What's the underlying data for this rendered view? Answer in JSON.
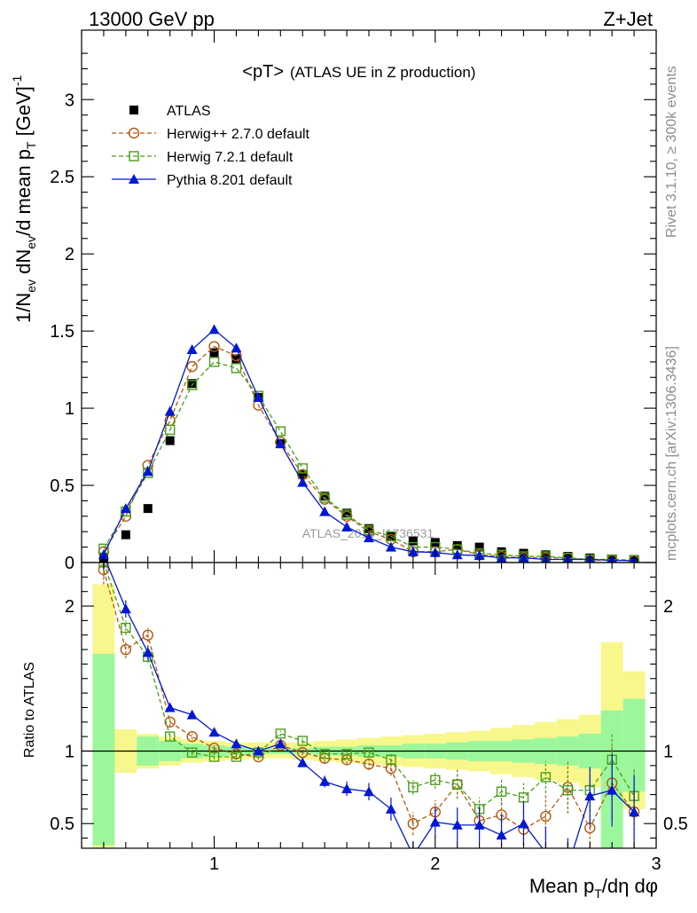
{
  "header": {
    "left": "13000 GeV pp",
    "right": "Z+Jet"
  },
  "side_labels": {
    "rivet": "Rivet 3.1.10, ≥ 300k events",
    "mcplots": "mcplots.cern.ch [arXiv:1306.3436]"
  },
  "colors": {
    "atlas": "#000000",
    "herwigpp": "#b3590f",
    "herwig7": "#4a9e1a",
    "pythia": "#0018d6",
    "band_inner": "#9cf79c",
    "band_outer": "#f7f78c"
  },
  "chart_data": [
    {
      "type": "scatter",
      "panel": "main",
      "title": "<pT>",
      "subtitle": "(ATLAS UE in Z production)",
      "ylabel": "1/N_ev dN_ev/d mean p_T [GeV]^-1",
      "ylabel_parts": {
        "main": "1/N",
        "sub1": "ev",
        "mid": " dN",
        "sub2": "ev",
        "mid2": "/d mean p",
        "sub3": "T",
        "unit": " [GeV]",
        "sup": "-1"
      },
      "watermark": "ATLAS_2019_I1736531",
      "xlim": [
        0.4,
        3.0
      ],
      "ylim": [
        0,
        3.45
      ],
      "yticks": [
        0,
        0.5,
        1,
        1.5,
        2,
        2.5,
        3
      ],
      "ytick_labels": [
        "0",
        "0.5",
        "1",
        "1.5",
        "2",
        "2.5",
        "3"
      ],
      "legend_position": "top-left",
      "x": [
        0.5,
        0.6,
        0.7,
        0.8,
        0.9,
        1.0,
        1.1,
        1.2,
        1.3,
        1.4,
        1.5,
        1.6,
        1.7,
        1.8,
        1.9,
        2.0,
        2.1,
        2.2,
        2.3,
        2.4,
        2.5,
        2.6,
        2.7,
        2.8,
        2.9
      ],
      "series": [
        {
          "name": "ATLAS",
          "key": "atlas",
          "values": [
            0.03,
            0.18,
            0.35,
            0.79,
            1.16,
            1.36,
            1.32,
            1.07,
            0.77,
            0.57,
            0.43,
            0.32,
            0.22,
            0.17,
            0.14,
            0.13,
            0.11,
            0.1,
            0.07,
            0.06,
            0.05,
            0.04,
            0.03,
            0.02,
            0.02
          ]
        },
        {
          "name": "Herwig++ 2.7.0 default",
          "key": "herwigpp",
          "values": [
            0.07,
            0.3,
            0.63,
            0.92,
            1.27,
            1.4,
            1.34,
            1.02,
            0.78,
            0.57,
            0.41,
            0.3,
            0.2,
            0.15,
            0.07,
            0.07,
            0.085,
            0.05,
            0.04,
            0.03,
            0.03,
            0.03,
            0.015,
            0.015,
            0.012
          ]
        },
        {
          "name": "Herwig 7.2.1 default",
          "key": "herwig7",
          "values": [
            0.09,
            0.33,
            0.58,
            0.86,
            1.15,
            1.3,
            1.26,
            1.08,
            0.85,
            0.61,
            0.42,
            0.31,
            0.21,
            0.17,
            0.1,
            0.1,
            0.085,
            0.06,
            0.05,
            0.04,
            0.04,
            0.03,
            0.02,
            0.02,
            0.015
          ]
        },
        {
          "name": "Pythia 8.201 default",
          "key": "pythia",
          "values": [
            0.05,
            0.35,
            0.59,
            0.98,
            1.38,
            1.51,
            1.39,
            1.07,
            0.77,
            0.52,
            0.33,
            0.23,
            0.16,
            0.1,
            0.07,
            0.065,
            0.05,
            0.045,
            0.03,
            0.03,
            0.02,
            0.02,
            0.02,
            0.015,
            0.012
          ]
        }
      ]
    },
    {
      "type": "line",
      "panel": "ratio",
      "ylabel": "Ratio to ATLAS",
      "xlabel": "Mean p_T/dη dφ",
      "xlabel_parts": {
        "main": "Mean p",
        "sub": "T",
        "rest": "/dη dφ"
      },
      "xlim": [
        0.4,
        3.0
      ],
      "ylim": [
        0.33,
        2.3
      ],
      "xticks": [
        1,
        2,
        3
      ],
      "xtick_labels": [
        "1",
        "2",
        "3"
      ],
      "yticks": [
        0.5,
        1,
        2
      ],
      "ytick_labels": [
        "0.5",
        "1",
        "2"
      ],
      "reference_line": 1,
      "bands": {
        "edges": [
          0.4,
          0.45,
          0.55,
          0.65,
          0.75,
          0.85,
          0.95,
          1.05,
          1.15,
          1.25,
          1.35,
          1.45,
          1.55,
          1.65,
          1.75,
          1.85,
          1.95,
          2.05,
          2.15,
          2.25,
          2.35,
          2.45,
          2.55,
          2.65,
          2.75,
          2.85,
          2.95
        ],
        "inner_lo": [
          null,
          0.35,
          1.0,
          0.9,
          0.93,
          0.95,
          0.96,
          0.97,
          0.98,
          0.98,
          0.98,
          0.97,
          0.97,
          0.96,
          0.96,
          0.95,
          0.95,
          0.94,
          0.93,
          0.93,
          0.92,
          0.91,
          0.9,
          0.88,
          0.33,
          0.72
        ],
        "inner_hi": [
          null,
          1.67,
          1.0,
          1.1,
          1.07,
          1.05,
          1.04,
          1.03,
          1.02,
          1.02,
          1.02,
          1.03,
          1.03,
          1.04,
          1.04,
          1.05,
          1.05,
          1.06,
          1.07,
          1.07,
          1.08,
          1.09,
          1.1,
          1.12,
          1.28,
          1.36
        ],
        "outer_lo": [
          null,
          0.33,
          0.85,
          0.88,
          0.9,
          0.92,
          0.93,
          0.94,
          0.95,
          0.95,
          0.94,
          0.93,
          0.92,
          0.91,
          0.9,
          0.89,
          0.88,
          0.87,
          0.86,
          0.84,
          0.82,
          0.8,
          0.78,
          0.75,
          0.33,
          0.6
        ],
        "outer_hi": [
          null,
          2.15,
          1.15,
          1.12,
          1.1,
          1.08,
          1.07,
          1.06,
          1.06,
          1.06,
          1.06,
          1.07,
          1.08,
          1.09,
          1.1,
          1.11,
          1.12,
          1.13,
          1.14,
          1.16,
          1.18,
          1.2,
          1.22,
          1.25,
          1.75,
          1.55
        ]
      },
      "x": [
        0.5,
        0.6,
        0.7,
        0.8,
        0.9,
        1.0,
        1.1,
        1.2,
        1.3,
        1.4,
        1.5,
        1.6,
        1.7,
        1.8,
        1.9,
        2.0,
        2.1,
        2.2,
        2.3,
        2.4,
        2.5,
        2.6,
        2.7,
        2.8,
        2.9
      ],
      "series": [
        {
          "name": "Herwig++ 2.7.0 default",
          "key": "herwigpp",
          "values": [
            2.25,
            1.7,
            1.8,
            1.2,
            1.1,
            1.02,
            0.98,
            0.96,
            1.04,
            0.99,
            0.95,
            0.94,
            0.91,
            0.88,
            0.5,
            0.58,
            0.77,
            0.52,
            0.56,
            0.46,
            0.55,
            0.75,
            0.47,
            0.78,
            0.58
          ],
          "err": [
            0.1,
            0.06,
            0.05,
            0.03,
            0.02,
            0.02,
            0.02,
            0.02,
            0.02,
            0.02,
            0.03,
            0.03,
            0.04,
            0.05,
            0.08,
            0.08,
            0.1,
            0.1,
            0.12,
            0.14,
            0.15,
            0.18,
            0.2,
            0.25,
            0.28
          ]
        },
        {
          "name": "Herwig 7.2.1 default",
          "key": "herwig7",
          "values": [
            2.3,
            1.85,
            1.65,
            1.1,
            0.99,
            0.96,
            0.96,
            0.99,
            1.12,
            1.07,
            0.98,
            0.98,
            0.99,
            0.94,
            0.75,
            0.8,
            0.77,
            0.6,
            0.72,
            0.68,
            0.82,
            0.73,
            0.73,
            0.94,
            0.69
          ],
          "err": [
            0.1,
            0.05,
            0.04,
            0.03,
            0.02,
            0.02,
            0.02,
            0.02,
            0.02,
            0.02,
            0.03,
            0.03,
            0.03,
            0.04,
            0.05,
            0.06,
            0.07,
            0.08,
            0.09,
            0.1,
            0.11,
            0.13,
            0.15,
            0.18,
            0.2
          ]
        },
        {
          "name": "Pythia 8.201 default",
          "key": "pythia",
          "values": [
            2.35,
            1.98,
            1.68,
            1.3,
            1.25,
            1.13,
            1.05,
            1.0,
            1.05,
            0.92,
            0.79,
            0.74,
            0.72,
            0.6,
            0.28,
            0.51,
            0.49,
            0.49,
            0.42,
            0.5,
            0.3,
            0.2,
            0.69,
            0.73,
            0.58
          ],
          "err": [
            0.1,
            0.06,
            0.05,
            0.03,
            0.03,
            0.02,
            0.02,
            0.02,
            0.02,
            0.03,
            0.04,
            0.05,
            0.06,
            0.08,
            0.1,
            0.1,
            0.12,
            0.12,
            0.14,
            0.15,
            0.18,
            0.2,
            0.2,
            0.25,
            0.25
          ]
        }
      ]
    }
  ]
}
